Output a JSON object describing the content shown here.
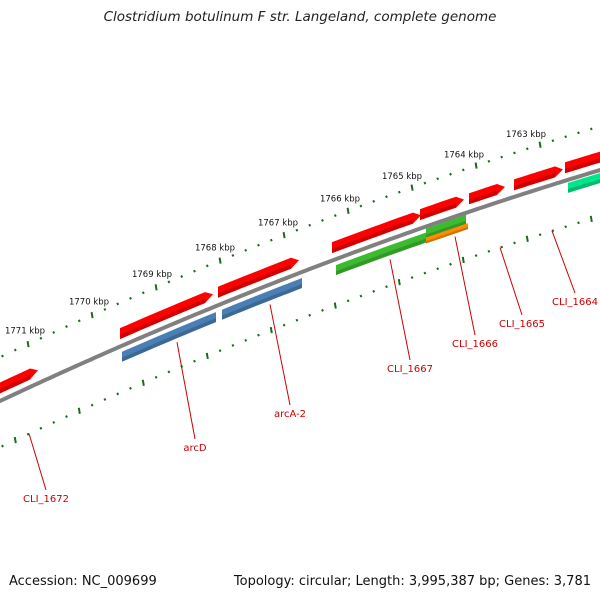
{
  "title": "Clostridium botulinum F str. Langeland, complete genome",
  "footer": {
    "accession": "Accession: NC_009699",
    "summary": "Topology: circular; Length: 3,995,387 bp; Genes: 3,781"
  },
  "scale": {
    "ticks": [
      "1763 kbp",
      "1764 kbp",
      "1765 kbp",
      "1766 kbp",
      "1767 kbp",
      "1768 kbp",
      "1769 kbp",
      "1770 kbp",
      "1771 kbp"
    ]
  },
  "genes": [
    {
      "label": "CLI_1664",
      "strand": "forward",
      "color": "#ff0000"
    },
    {
      "label": "CLI_1665",
      "strand": "forward",
      "color": "#ff0000"
    },
    {
      "label": "CLI_1666",
      "strand": "reverse",
      "color": "#3dbb2f"
    },
    {
      "label": "CLI_1667",
      "strand": "reverse",
      "color": "#3dbb2f"
    },
    {
      "label": "arcA-2",
      "strand": "reverse",
      "color": "#4a7fb5"
    },
    {
      "label": "arcD",
      "strand": "reverse",
      "color": "#4a7fb5"
    },
    {
      "label": "CLI_1672",
      "strand": "forward",
      "color": "#ff0000"
    }
  ],
  "colors": {
    "backbone": "#808080",
    "tick_mark": "#1a6b1a",
    "label_text": "#cc0000",
    "cds_red": "#ff0000",
    "cds_green": "#3dbb2f",
    "cds_blue": "#4a7fb5",
    "cds_orange": "#ff8c00",
    "cds_teal": "#00e68a"
  }
}
